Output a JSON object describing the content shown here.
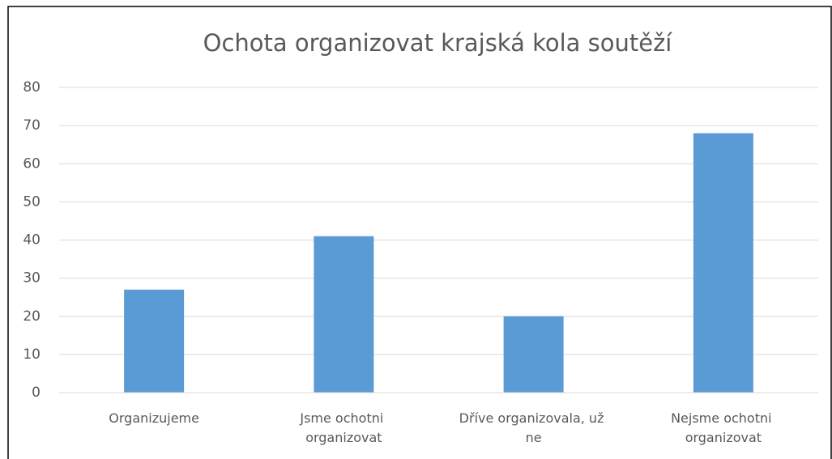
{
  "chart_data": {
    "type": "bar",
    "title": "Ochota organizovat krajská kola soutěží",
    "categories": [
      "Organizujeme",
      "Jsme ochotni organizovat",
      "Dříve organizovala, už ne",
      "Nejsme ochotni organizovat"
    ],
    "values": [
      27,
      41,
      20,
      68
    ],
    "color": "#5b9bd5",
    "ylim": [
      0,
      80
    ],
    "yticks": [
      0,
      10,
      20,
      30,
      40,
      50,
      60,
      70,
      80
    ],
    "grid": true
  }
}
